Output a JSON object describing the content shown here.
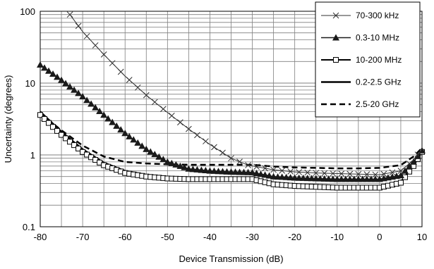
{
  "chart_data": {
    "type": "line",
    "title": "",
    "xlabel": "Device Transmission (dB)",
    "ylabel": "Uncertainty (degrees)",
    "xlim": [
      -80,
      10
    ],
    "ylim": [
      0.1,
      100
    ],
    "y_scale": "log",
    "x_ticks": [
      "-80",
      "-70",
      "-60",
      "-50",
      "-40",
      "-30",
      "-20",
      "-10",
      "0",
      "10"
    ],
    "y_ticks": [
      "0.1",
      "1",
      "10",
      "100"
    ],
    "grid": true,
    "legend_position": "top-right",
    "series": [
      {
        "name": "70-300 kHz",
        "marker": "x",
        "line": "thin",
        "color": "#303030",
        "x": [
          -73,
          -70,
          -65,
          -60,
          -55,
          -50,
          -45,
          -40,
          -35,
          -31,
          -25,
          -20,
          -15,
          -10,
          -5,
          0,
          5,
          8,
          10
        ],
        "y": [
          90,
          52,
          25,
          12.5,
          6.8,
          3.9,
          2.3,
          1.4,
          0.9,
          0.72,
          0.62,
          0.58,
          0.56,
          0.55,
          0.54,
          0.53,
          0.6,
          0.85,
          1.2
        ]
      },
      {
        "name": "0.3-10 MHz",
        "marker": "triangle",
        "line": "medium",
        "color": "#1a1a1a",
        "x": [
          -80,
          -75,
          -70,
          -65,
          -60,
          -55,
          -50,
          -45,
          -40,
          -35,
          -30,
          -25,
          -20,
          -15,
          -10,
          -5,
          0,
          5,
          8,
          10
        ],
        "y": [
          18,
          11,
          6.5,
          3.6,
          2.0,
          1.2,
          0.8,
          0.64,
          0.6,
          0.58,
          0.57,
          0.5,
          0.48,
          0.47,
          0.46,
          0.46,
          0.46,
          0.52,
          0.8,
          1.15
        ]
      },
      {
        "name": "10-200 MHz",
        "marker": "square",
        "line": "thick",
        "color": "#000000",
        "x": [
          -80,
          -75,
          -70,
          -65,
          -60,
          -55,
          -50,
          -45,
          -40,
          -35,
          -30,
          -25,
          -20,
          -15,
          -10,
          -5,
          0,
          5,
          8,
          10
        ],
        "y": [
          3.6,
          1.9,
          1.1,
          0.72,
          0.56,
          0.5,
          0.47,
          0.46,
          0.46,
          0.46,
          0.46,
          0.39,
          0.37,
          0.36,
          0.35,
          0.35,
          0.35,
          0.41,
          0.7,
          1.1
        ]
      },
      {
        "name": "0.2-2.5 GHz",
        "marker": "none",
        "line": "solid-thick",
        "color": "#000000",
        "x": [
          -80,
          -75,
          -70,
          -65,
          -60,
          -55,
          -50,
          -45,
          -40,
          -35,
          -30,
          -25,
          -20,
          -15,
          -10,
          -5,
          0,
          5,
          8,
          10
        ],
        "y": [
          4.0,
          2.1,
          1.2,
          0.78,
          0.6,
          0.53,
          0.49,
          0.48,
          0.48,
          0.48,
          0.48,
          0.41,
          0.38,
          0.37,
          0.36,
          0.36,
          0.36,
          0.42,
          0.72,
          1.15
        ]
      },
      {
        "name": "2.5-20 GHz",
        "marker": "none",
        "line": "dashed",
        "color": "#000000",
        "x": [
          -80,
          -75,
          -70,
          -65,
          -60,
          -55,
          -50,
          -45,
          -40,
          -35,
          -30,
          -25,
          -20,
          -15,
          -10,
          -5,
          0,
          5,
          8,
          10
        ],
        "y": [
          3.8,
          2.2,
          1.35,
          0.95,
          0.8,
          0.76,
          0.74,
          0.73,
          0.73,
          0.73,
          0.73,
          0.69,
          0.67,
          0.66,
          0.65,
          0.65,
          0.66,
          0.72,
          0.95,
          1.25
        ]
      }
    ]
  }
}
